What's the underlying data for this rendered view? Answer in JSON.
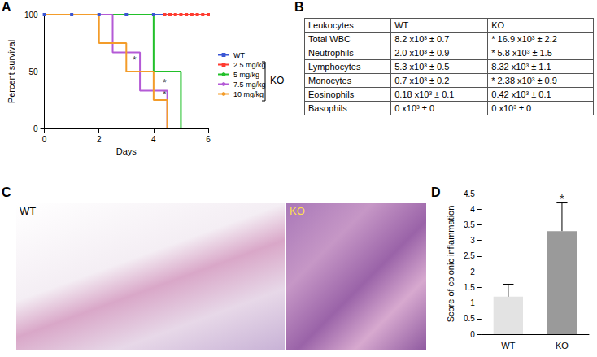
{
  "panel_labels": [
    "A",
    "B",
    "C",
    "D"
  ],
  "chart_data": [
    {
      "type": "step",
      "xlabel": "Days",
      "ylabel": "Percent survival",
      "xlim": [
        0,
        6
      ],
      "xticks": [
        0,
        2,
        4,
        6
      ],
      "ylim": [
        0,
        100
      ],
      "yticks": [
        0,
        50,
        100
      ],
      "grid": false,
      "legend": "right",
      "legend_group": "KO",
      "series": [
        {
          "name": "WT",
          "color": "#3a56d4",
          "marker": "square",
          "x": [
            0,
            1,
            2,
            3,
            4,
            4.4
          ],
          "values": [
            100,
            100,
            100,
            100,
            100,
            100
          ]
        },
        {
          "name": "2.5 mg/kg",
          "color": "#ff3b30",
          "marker": "square",
          "x": [
            4.4,
            4.6,
            4.8,
            5.0,
            5.2,
            5.4,
            5.6,
            5.8,
            6.0
          ],
          "values": [
            100,
            100,
            100,
            100,
            100,
            100,
            100,
            100,
            100
          ]
        },
        {
          "name": "5 mg/kg",
          "color": "#22c02a",
          "marker": "none",
          "x": [
            0,
            4,
            5
          ],
          "values": [
            100,
            50,
            0
          ]
        },
        {
          "name": "7.5 mg/kg",
          "color": "#b45ad6",
          "marker": "none",
          "x": [
            0,
            2.5,
            3.5,
            4.5
          ],
          "values": [
            100,
            66.7,
            33.3,
            0
          ]
        },
        {
          "name": "10 mg/kg",
          "color": "#f39c2a",
          "marker": "none",
          "x": [
            0,
            2,
            3,
            4,
            4.5
          ],
          "values": [
            100,
            75,
            50,
            25,
            0
          ]
        }
      ],
      "annotations": [
        {
          "text": "*",
          "x": 3.3,
          "y": 60
        },
        {
          "text": "*",
          "x": 4.4,
          "y": 40
        },
        {
          "text": "*",
          "x": 4.4,
          "y": 30
        }
      ]
    },
    {
      "type": "bar",
      "ylabel": "Score of colonic inflammation",
      "categories": [
        "WT",
        "KO"
      ],
      "values": [
        1.2,
        3.3
      ],
      "errors": [
        0.4,
        0.9
      ],
      "colors": [
        "#e3e3e3",
        "#9a9a9a"
      ],
      "ylim": [
        0,
        4.5
      ],
      "yticks": [
        0,
        0.5,
        1,
        1.5,
        2,
        2.5,
        3,
        3.5,
        4,
        4.5
      ],
      "grid": false,
      "annotations": [
        {
          "text": "*",
          "category": "KO",
          "y": 4.3
        }
      ]
    }
  ],
  "table": {
    "header": [
      "Leukocytes",
      "WT",
      "KO"
    ],
    "rows": [
      [
        "Total WBC",
        "8.2  x10³ ± 0.7",
        "* 16.9 x10³ ± 2.2"
      ],
      [
        "Neutrophils",
        "2.0  x10³ ± 0.9",
        "* 5.8  x10³ ± 1.5"
      ],
      [
        "Lymphocytes",
        "5.3  x10³ ± 0.5",
        "8.32 x10³ ± 1.1"
      ],
      [
        "Monocytes",
        "0.7  x10³ ± 0.2",
        "* 2.38 x10³ ± 0.9"
      ],
      [
        "Eosinophils",
        "0.18 x10³ ± 0.1",
        "0.42 x10³ ± 0.1"
      ],
      [
        "Basophils",
        "0    x10³ ± 0",
        "0    x10³ ± 0"
      ]
    ]
  },
  "micrographs": {
    "labels": [
      "WT",
      "KO"
    ]
  }
}
